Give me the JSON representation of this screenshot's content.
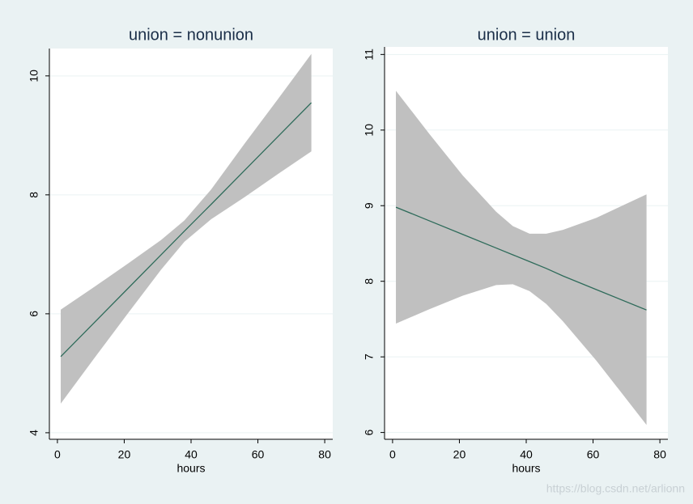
{
  "chart_data": [
    {
      "type": "line",
      "title": "union = nonunion",
      "x_label": "hours",
      "x": [
        1,
        11,
        21,
        31,
        38,
        46,
        56,
        66,
        76
      ],
      "values": [
        5.28,
        5.85,
        6.42,
        6.99,
        7.39,
        7.84,
        8.41,
        8.98,
        9.55
      ],
      "ci_upper": [
        6.07,
        6.45,
        6.84,
        7.24,
        7.57,
        8.09,
        8.86,
        9.61,
        10.37
      ],
      "ci_lower": [
        4.49,
        5.25,
        6.0,
        6.74,
        7.21,
        7.59,
        7.96,
        8.35,
        8.73
      ],
      "color": "#2e6b5a",
      "band_color": "#c0c0c0",
      "xlim": [
        -2.4,
        82.4
      ],
      "xticks": [
        0,
        20,
        40,
        60,
        80
      ],
      "ylim": [
        3.89,
        10.46
      ],
      "yticks": [
        4,
        6,
        8,
        10
      ],
      "grid": true
    },
    {
      "type": "line",
      "title": "union = union",
      "x_label": "hours",
      "x": [
        1,
        11,
        21,
        31,
        36,
        41,
        46,
        51,
        61,
        76
      ],
      "values": [
        8.98,
        8.8,
        8.62,
        8.44,
        8.35,
        8.26,
        8.17,
        8.07,
        7.89,
        7.62
      ],
      "ci_upper": [
        10.52,
        9.95,
        9.4,
        8.92,
        8.73,
        8.63,
        8.63,
        8.68,
        8.84,
        9.15
      ],
      "ci_lower": [
        7.44,
        7.63,
        7.81,
        7.95,
        7.96,
        7.87,
        7.7,
        7.47,
        6.95,
        6.1
      ],
      "color": "#2e6b5a",
      "band_color": "#c0c0c0",
      "xlim": [
        -2.4,
        82.4
      ],
      "xticks": [
        0,
        20,
        40,
        60,
        80
      ],
      "ylim": [
        5.91,
        11.1
      ],
      "yticks": [
        6,
        7,
        8,
        9,
        10,
        11
      ],
      "grid": true
    }
  ],
  "watermark": "https://blog.csdn.net/arlionn"
}
